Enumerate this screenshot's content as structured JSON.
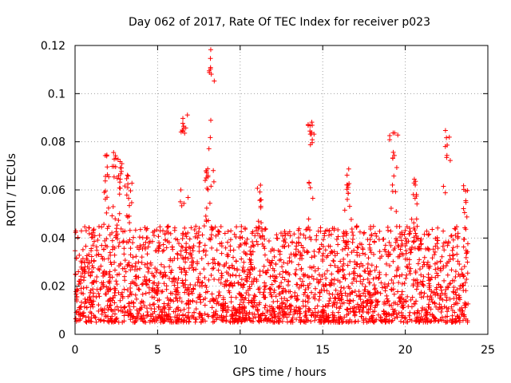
{
  "chart_data": {
    "type": "scatter",
    "title": "Day 062 of 2017, Rate Of TEC Index for receiver p023",
    "xlabel": "GPS time / hours",
    "ylabel": "ROTI / TECUs",
    "xlim": [
      0,
      25
    ],
    "ylim": [
      0,
      0.12
    ],
    "xticks": [
      0,
      5,
      10,
      15,
      20,
      25
    ],
    "yticks": [
      0,
      0.02,
      0.04,
      0.06,
      0.08,
      0.1,
      0.12
    ],
    "xtick_labels": [
      "0",
      "5",
      "10",
      "15",
      "20",
      "25"
    ],
    "ytick_labels": [
      "0",
      "0.02",
      "0.04",
      "0.06",
      "0.08",
      "0.1",
      "0.12"
    ],
    "grid": true,
    "marker": "+",
    "color": "#ff0000",
    "x_data_range": [
      0,
      23.8
    ],
    "bursts": [
      {
        "center": 1.9,
        "peak": 0.075
      },
      {
        "center": 2.4,
        "peak": 0.076
      },
      {
        "center": 2.7,
        "peak": 0.072
      },
      {
        "center": 3.2,
        "peak": 0.067
      },
      {
        "center": 6.6,
        "peak": 0.092
      },
      {
        "center": 8.2,
        "peak": 0.119
      },
      {
        "center": 8.0,
        "peak": 0.07
      },
      {
        "center": 11.2,
        "peak": 0.064
      },
      {
        "center": 14.3,
        "peak": 0.089
      },
      {
        "center": 16.5,
        "peak": 0.07
      },
      {
        "center": 19.3,
        "peak": 0.084
      },
      {
        "center": 20.6,
        "peak": 0.068
      },
      {
        "center": 22.5,
        "peak": 0.085
      },
      {
        "center": 23.6,
        "peak": 0.062
      }
    ],
    "baseline_range": [
      0.005,
      0.045
    ]
  }
}
